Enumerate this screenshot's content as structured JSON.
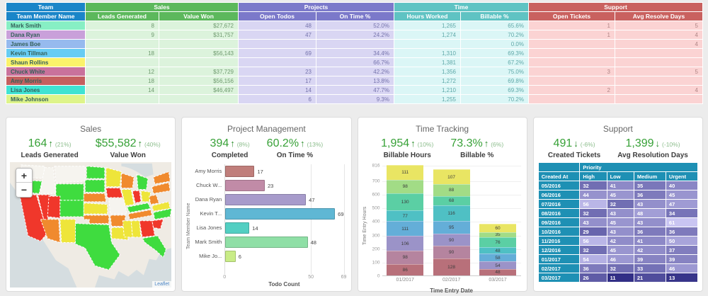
{
  "team_table": {
    "groups": [
      {
        "label": "Team",
        "color": "#1a85c8",
        "columns": [
          "Team Member Name"
        ]
      },
      {
        "label": "Sales",
        "color": "#5cb85c",
        "columns": [
          "Leads Generated",
          "Value Won"
        ]
      },
      {
        "label": "Projects",
        "color": "#7b79ca",
        "columns": [
          "Open Todos",
          "On Time %"
        ]
      },
      {
        "label": "Time",
        "color": "#5fc3c3",
        "columns": [
          "Hours Worked",
          "Billable %"
        ]
      },
      {
        "label": "Support",
        "color": "#c9615f",
        "columns": [
          "Open Tickets",
          "Avg Resolve Days"
        ]
      }
    ],
    "rows": [
      {
        "name": "Mark Smith",
        "color": "#87efc4",
        "cells": [
          "8",
          "$27,672",
          "48",
          "52.0%",
          "1,265",
          "65.6%",
          "1",
          "5"
        ]
      },
      {
        "name": "Dana Ryan",
        "color": "#c9a0da",
        "cells": [
          "9",
          "$31,757",
          "47",
          "24.2%",
          "1,274",
          "70.2%",
          "1",
          "4"
        ]
      },
      {
        "name": "James Boe",
        "color": "#96baee",
        "cells": [
          "",
          "",
          "",
          "",
          "",
          "0.0%",
          "",
          "4"
        ]
      },
      {
        "name": "Kevin Tillman",
        "color": "#67ccf3",
        "cells": [
          "18",
          "$56,143",
          "69",
          "34.4%",
          "1,310",
          "69.3%",
          "",
          ""
        ]
      },
      {
        "name": "Shaun Rollins",
        "color": "#fbf26a",
        "cells": [
          "",
          "",
          "",
          "66.7%",
          "1,381",
          "67.2%",
          "",
          ""
        ]
      },
      {
        "name": "Chuck White",
        "color": "#c9729c",
        "cells": [
          "12",
          "$37,729",
          "23",
          "42.2%",
          "1,356",
          "75.0%",
          "3",
          "5"
        ]
      },
      {
        "name": "Amy Morris",
        "color": "#c55f5f",
        "cells": [
          "18",
          "$56,156",
          "17",
          "13.8%",
          "1,272",
          "69.8%",
          "",
          ""
        ]
      },
      {
        "name": "Lisa Jones",
        "color": "#40e3d3",
        "cells": [
          "14",
          "$46,497",
          "14",
          "47.7%",
          "1,210",
          "69.3%",
          "2",
          "4"
        ]
      },
      {
        "name": "Mike Johnson",
        "color": "#def48a",
        "cells": [
          "",
          "",
          "6",
          "9.3%",
          "1,255",
          "70.2%",
          "",
          ""
        ]
      }
    ]
  },
  "cards": {
    "sales": {
      "title": "Sales",
      "metrics": [
        {
          "value": "164",
          "arrow": "↑",
          "pct": "(21%)",
          "label": "Leads Generated"
        },
        {
          "value": "$55,582",
          "arrow": "↑",
          "pct": "(40%)",
          "label": "Value Won"
        }
      ],
      "map": {
        "zoom_in": "+",
        "zoom_out": "−",
        "attribution": "Leaflet",
        "palette": {
          "red": "#f0372b",
          "orange": "#f08a2e",
          "yellow": "#eee53a",
          "green": "#3fdc3f",
          "none": "#f6f4ef"
        },
        "state_colors": {
          "WA": "none",
          "OR": "green",
          "ID": "none",
          "MT": "none",
          "ND": "green",
          "SD": "green",
          "MN": "yellow",
          "WI": "orange",
          "MI": "green",
          "WY": "green",
          "IA": "red",
          "NE": "orange",
          "CA": "red",
          "NV": "red",
          "UT": "red",
          "CO": "green",
          "AZ": "orange",
          "NM": "yellow",
          "KS": "yellow",
          "OK": "orange",
          "TX": "green",
          "MO": "none",
          "AR": "orange",
          "LA": "yellow",
          "IL": "yellow",
          "IN": "red",
          "OH": "yellow",
          "KY": "green",
          "TN": "orange",
          "WV": "orange",
          "VA": "yellow",
          "NC": "green",
          "SC": "red",
          "GA": "red",
          "AL": "yellow",
          "MS": "yellow",
          "FL": "green",
          "PA": "orange",
          "NY": "orange"
        }
      }
    },
    "project_management": {
      "title": "Project Management",
      "metrics": [
        {
          "value": "394",
          "arrow": "↑",
          "pct": "(8%)",
          "label": "Completed"
        },
        {
          "value": "60.2%",
          "arrow": "↑",
          "pct": "(13%)",
          "label": "On Time %"
        }
      ]
    },
    "time_tracking": {
      "title": "Time Tracking",
      "metrics": [
        {
          "value": "1,954",
          "arrow": "↑",
          "pct": "(10%)",
          "label": "Billable Hours"
        },
        {
          "value": "73.3%",
          "arrow": "↑",
          "pct": "(6%)",
          "label": "Billable %"
        }
      ]
    },
    "support": {
      "title": "Support",
      "metrics": [
        {
          "value": "491",
          "arrow": "↓",
          "pct": "(-6%)",
          "label": "Created Tickets"
        },
        {
          "value": "1,399",
          "arrow": "↓",
          "pct": "(-10%)",
          "label": "Avg Resolution Days"
        }
      ]
    }
  },
  "chart_data": [
    {
      "type": "bar",
      "orientation": "horizontal",
      "categories": [
        "Amy Morris",
        "Chuck W...",
        "Dana Ryan",
        "Kevin T...",
        "Lisa Jones",
        "Mark Smith",
        "Mike Jo..."
      ],
      "values": [
        17,
        23,
        47,
        69,
        14,
        48,
        6
      ],
      "colors": [
        "#c07e7b",
        "#c18ba7",
        "#a79bcb",
        "#5fb7d4",
        "#52cfc2",
        "#8fdfa6",
        "#c9ec87"
      ],
      "xlabel": "Todo Count",
      "ylabel": "Team Member Name",
      "xticks": [
        0,
        50,
        69
      ],
      "xlim": [
        0,
        69
      ]
    },
    {
      "type": "stacked-bar",
      "x": [
        "01/2017",
        "02/2017",
        "03/2017"
      ],
      "xlabel": "Time Entry Date",
      "ylabel": "Time Entry Hours",
      "yticks": [
        0,
        100,
        200,
        300,
        400,
        500,
        600,
        700,
        816
      ],
      "ylim": [
        0,
        816
      ],
      "palette": [
        "#b8707a",
        "#b5849f",
        "#9b93c8",
        "#64aed8",
        "#4fc0c4",
        "#5bcfa4",
        "#a2dc86",
        "#e9e563"
      ],
      "stacks": [
        [
          {
            "v": 86,
            "c": 0
          },
          {
            "v": 98,
            "c": 1
          },
          {
            "v": 106,
            "c": 2
          },
          {
            "v": 111,
            "c": 3
          },
          {
            "v": 77,
            "c": 4
          },
          {
            "v": 130,
            "c": 5
          },
          {
            "v": 98,
            "c": 6
          },
          {
            "v": 111,
            "c": 7
          }
        ],
        [
          {
            "v": 128,
            "c": 0
          },
          {
            "v": 90,
            "c": 1
          },
          {
            "v": 90,
            "c": 2
          },
          {
            "v": 95,
            "c": 3
          },
          {
            "v": 116,
            "c": 4
          },
          {
            "v": 68,
            "c": 5
          },
          {
            "v": 88,
            "c": 6
          },
          {
            "v": 107,
            "c": 7
          }
        ],
        [
          {
            "v": 48,
            "c": 0
          },
          {
            "v": 54,
            "c": 2
          },
          {
            "v": 58,
            "c": 3
          },
          {
            "v": 48,
            "c": 4
          },
          {
            "v": 76,
            "c": 5
          },
          {
            "v": 35,
            "c": 6
          },
          {
            "v": 60,
            "c": 7
          }
        ]
      ]
    },
    {
      "type": "heatmap",
      "group_header": "Priority",
      "columns": [
        "Created At",
        "High",
        "Low",
        "Medium",
        "Urgent"
      ],
      "rows": [
        [
          "05/2016",
          32,
          41,
          35,
          40
        ],
        [
          "06/2016",
          44,
          45,
          36,
          45
        ],
        [
          "07/2016",
          56,
          32,
          43,
          47
        ],
        [
          "08/2016",
          32,
          43,
          48,
          34
        ],
        [
          "09/2016",
          43,
          45,
          43,
          61
        ],
        [
          "10/2016",
          29,
          43,
          36,
          36
        ],
        [
          "11/2016",
          56,
          42,
          41,
          50
        ],
        [
          "12/2016",
          32,
          45,
          42,
          37
        ],
        [
          "01/2017",
          54,
          46,
          39,
          39
        ],
        [
          "02/2017",
          36,
          32,
          33,
          46
        ],
        [
          "03/2017",
          26,
          11,
          21,
          13
        ]
      ],
      "value_range": [
        11,
        61
      ],
      "color_low": "#322f86",
      "color_high": "#c9c5f2",
      "header_bg": "#1e90b4"
    }
  ]
}
